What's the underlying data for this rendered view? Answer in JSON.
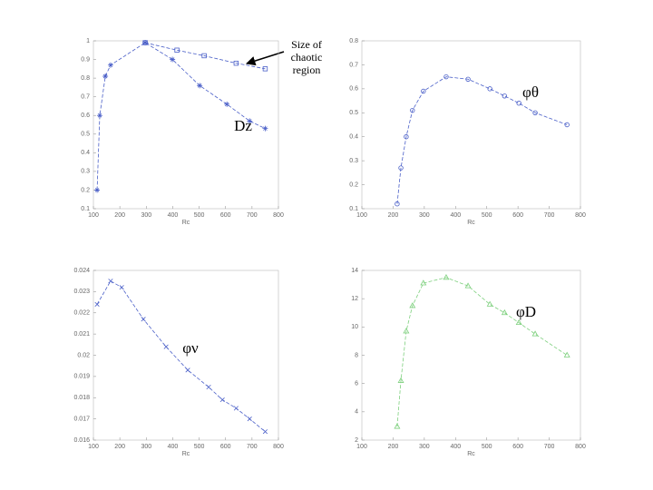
{
  "chart_data": [
    {
      "type": "line",
      "xlabel": "Rc",
      "xlim": [
        100,
        800
      ],
      "xticks": [
        100,
        200,
        300,
        400,
        500,
        600,
        700,
        800
      ],
      "ylim": [
        0.1,
        1.0
      ],
      "yticks": [
        0.1,
        0.2,
        0.3,
        0.4,
        0.5,
        0.6,
        0.7,
        0.8,
        0.9,
        1.0
      ],
      "series": [
        {
          "name": "Dz",
          "color": "#4a5fc8",
          "marker": "star",
          "x": [
            114,
            124,
            145,
            165,
            296,
            399,
            502,
            605,
            691,
            750
          ],
          "values": [
            0.2,
            0.6,
            0.81,
            0.87,
            0.99,
            0.9,
            0.76,
            0.66,
            0.57,
            0.53
          ]
        },
        {
          "name": "Size of chaotic region",
          "color": "#4a5fc8",
          "marker": "square",
          "x": [
            296,
            416,
            519,
            640,
            750
          ],
          "values": [
            0.99,
            0.95,
            0.92,
            0.88,
            0.85
          ]
        }
      ]
    },
    {
      "type": "line",
      "xlabel": "Rc",
      "xlim": [
        100,
        800
      ],
      "xticks": [
        100,
        200,
        300,
        400,
        500,
        600,
        700,
        800
      ],
      "ylim": [
        0.1,
        0.8
      ],
      "yticks": [
        0.1,
        0.2,
        0.3,
        0.4,
        0.5,
        0.6,
        0.7,
        0.8
      ],
      "series": [
        {
          "name": "φθ",
          "color": "#4a5fc8",
          "marker": "circle",
          "x": [
            213,
            225,
            242,
            262,
            297,
            370,
            440,
            510,
            557,
            603,
            655,
            757
          ],
          "values": [
            0.12,
            0.27,
            0.4,
            0.51,
            0.59,
            0.65,
            0.64,
            0.6,
            0.57,
            0.54,
            0.5,
            0.45
          ]
        }
      ]
    },
    {
      "type": "line",
      "xlabel": "Rc",
      "xlim": [
        100,
        800
      ],
      "xticks": [
        100,
        200,
        300,
        400,
        500,
        600,
        700,
        800
      ],
      "ylim": [
        0.016,
        0.024
      ],
      "yticks": [
        0.016,
        0.017,
        0.018,
        0.019,
        0.02,
        0.021,
        0.022,
        0.023,
        0.024
      ],
      "series": [
        {
          "name": "φν",
          "color": "#4a5fc8",
          "marker": "x",
          "x": [
            114,
            165,
            207,
            289,
            375,
            457,
            536,
            588,
            640,
            691,
            750
          ],
          "values": [
            0.0224,
            0.0235,
            0.0232,
            0.0217,
            0.0204,
            0.0193,
            0.0185,
            0.0179,
            0.0175,
            0.017,
            0.0164
          ]
        }
      ]
    },
    {
      "type": "line",
      "xlabel": "Rc",
      "xlim": [
        100,
        800
      ],
      "xticks": [
        100,
        200,
        300,
        400,
        500,
        600,
        700,
        800
      ],
      "ylim": [
        2,
        14
      ],
      "yticks": [
        2,
        4,
        6,
        8,
        10,
        12,
        14
      ],
      "series": [
        {
          "name": "φD",
          "color": "#7ed07e",
          "marker": "triangle",
          "x": [
            213,
            225,
            242,
            262,
            297,
            370,
            440,
            510,
            557,
            603,
            655,
            757
          ],
          "values": [
            2.96,
            6.2,
            9.7,
            11.5,
            13.1,
            13.5,
            12.9,
            11.6,
            11.0,
            10.3,
            9.5,
            8.0
          ]
        }
      ]
    }
  ]
}
